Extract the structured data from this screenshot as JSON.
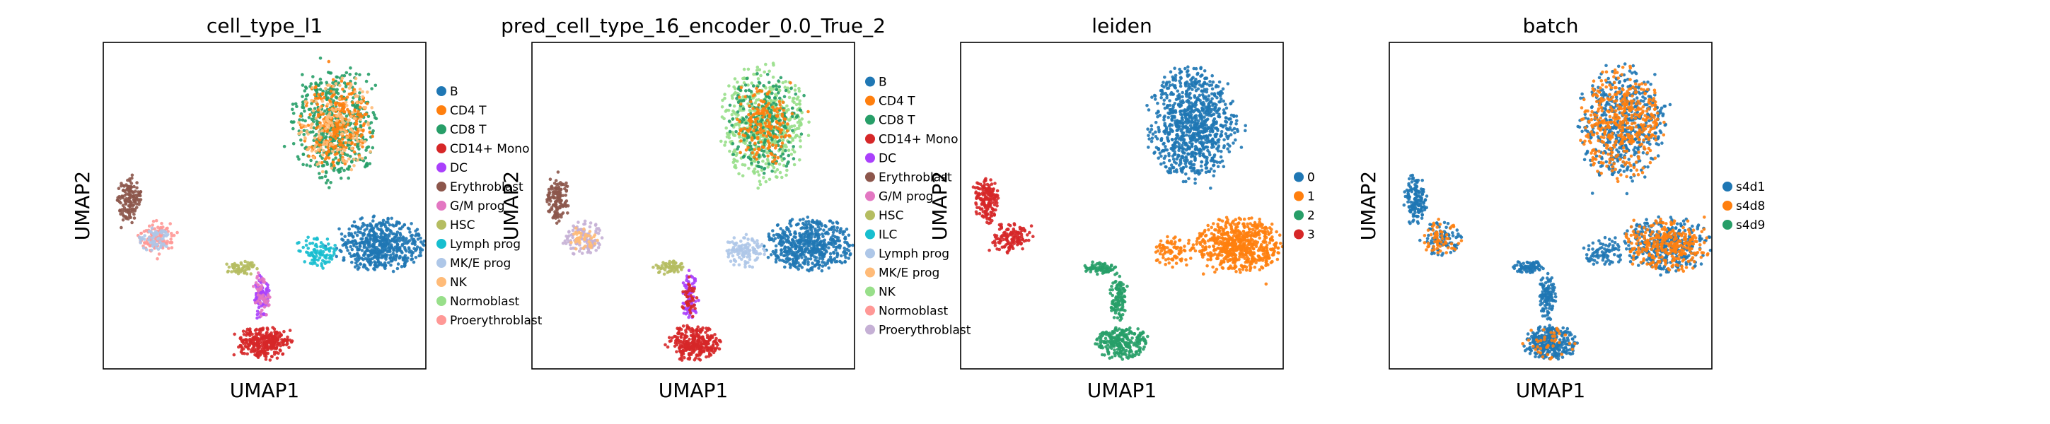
{
  "chart_data": [
    {
      "type": "scatter",
      "title": "cell_type_l1",
      "xlabel": "UMAP1",
      "ylabel": "UMAP2",
      "grid": false,
      "legend_position": "right",
      "legend": [
        {
          "label": "B",
          "color": "#1f77b4"
        },
        {
          "label": "CD4 T",
          "color": "#ff7f0e"
        },
        {
          "label": "CD8 T",
          "color": "#279e68"
        },
        {
          "label": "CD14+ Mono",
          "color": "#d62728"
        },
        {
          "label": "DC",
          "color": "#aa40fc"
        },
        {
          "label": "Erythroblast",
          "color": "#8c564b"
        },
        {
          "label": "G/M prog",
          "color": "#e377c2"
        },
        {
          "label": "HSC",
          "color": "#b5bd61"
        },
        {
          "label": "Lymph prog",
          "color": "#17becf"
        },
        {
          "label": "MK/E prog",
          "color": "#aec7e8"
        },
        {
          "label": "NK",
          "color": "#ffbb78"
        },
        {
          "label": "Normoblast",
          "color": "#98df8a"
        },
        {
          "label": "Proerythroblast",
          "color": "#ff9896"
        }
      ]
    },
    {
      "type": "scatter",
      "title": "pred_cell_type_16_encoder_0.0_True_2",
      "xlabel": "UMAP1",
      "ylabel": "UMAP2",
      "grid": false,
      "legend_position": "right",
      "legend": [
        {
          "label": "B",
          "color": "#1f77b4"
        },
        {
          "label": "CD4 T",
          "color": "#ff7f0e"
        },
        {
          "label": "CD8 T",
          "color": "#279e68"
        },
        {
          "label": "CD14+ Mono",
          "color": "#d62728"
        },
        {
          "label": "DC",
          "color": "#aa40fc"
        },
        {
          "label": "Erythroblast",
          "color": "#8c564b"
        },
        {
          "label": "G/M prog",
          "color": "#e377c2"
        },
        {
          "label": "HSC",
          "color": "#b5bd61"
        },
        {
          "label": "ILC",
          "color": "#17becf"
        },
        {
          "label": "Lymph prog",
          "color": "#aec7e8"
        },
        {
          "label": "MK/E prog",
          "color": "#ffbb78"
        },
        {
          "label": "NK",
          "color": "#98df8a"
        },
        {
          "label": "Normoblast",
          "color": "#ff9896"
        },
        {
          "label": "Proerythroblast",
          "color": "#c5b0d5"
        }
      ]
    },
    {
      "type": "scatter",
      "title": "leiden",
      "xlabel": "UMAP1",
      "ylabel": "UMAP2",
      "grid": false,
      "legend_position": "right",
      "legend": [
        {
          "label": "0",
          "color": "#1f77b4"
        },
        {
          "label": "1",
          "color": "#ff7f0e"
        },
        {
          "label": "2",
          "color": "#279e68"
        },
        {
          "label": "3",
          "color": "#d62728"
        }
      ]
    },
    {
      "type": "scatter",
      "title": "batch",
      "xlabel": "UMAP1",
      "ylabel": "UMAP2",
      "grid": false,
      "legend_position": "right",
      "legend": [
        {
          "label": "s4d1",
          "color": "#1f77b4"
        },
        {
          "label": "s4d8",
          "color": "#ff7f0e"
        },
        {
          "label": "s4d9",
          "color": "#279e68"
        }
      ]
    }
  ]
}
